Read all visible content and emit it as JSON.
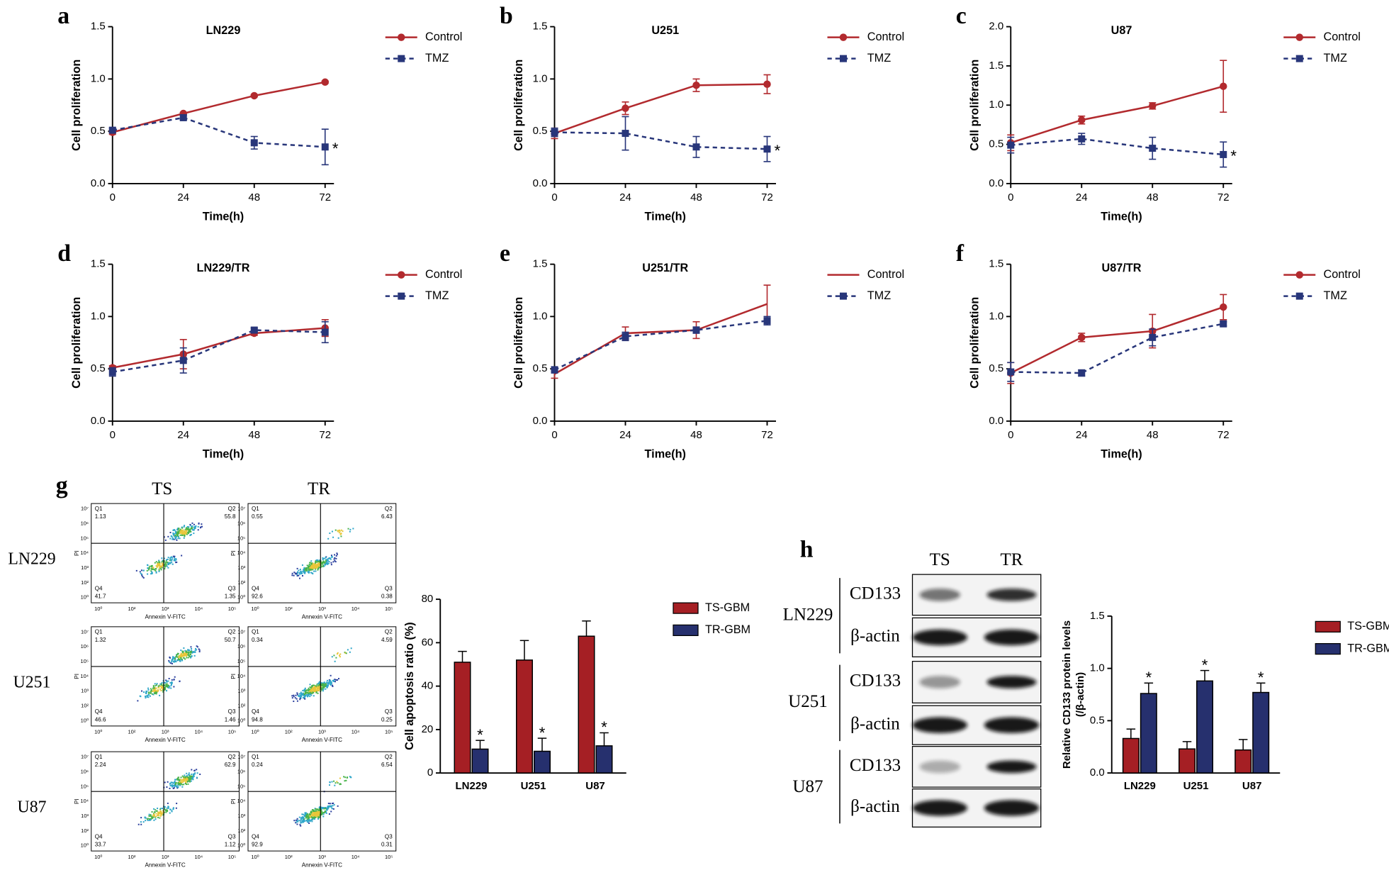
{
  "chart_data": [
    {
      "type": "line",
      "panel": "a",
      "title": "LN229",
      "xlabel": "Time(h)",
      "ylabel": "Cell proliferation",
      "x": [
        0,
        24,
        48,
        72
      ],
      "xlim": [
        0,
        75
      ],
      "xticks": [
        0,
        24,
        48,
        72
      ],
      "ylim": [
        0,
        1.5
      ],
      "yticks": [
        {
          "value": 0,
          "label": "0.0"
        },
        {
          "value": 0.5,
          "label": "0.5"
        },
        {
          "value": 1,
          "label": "1.0"
        },
        {
          "value": 1.5,
          "label": "1.5"
        }
      ],
      "series": [
        {
          "name": "Control",
          "color": "#b22a2e",
          "line_style": "solid",
          "marker": "circle",
          "values": [
            0.49,
            0.67,
            0.84,
            0.97
          ],
          "errors": [
            0.02,
            0.01,
            0.01,
            0.01
          ]
        },
        {
          "name": "TMZ",
          "color": "#28367a",
          "line_style": "dashed",
          "marker": "square",
          "values": [
            0.51,
            0.63,
            0.39,
            0.35
          ],
          "errors": [
            0.02,
            0.02,
            0.06,
            0.17
          ]
        }
      ],
      "significance": "*"
    },
    {
      "type": "line",
      "panel": "b",
      "title": "U251",
      "xlabel": "Time(h)",
      "ylabel": "Cell proliferation",
      "x": [
        0,
        24,
        48,
        72
      ],
      "xlim": [
        0,
        75
      ],
      "xticks": [
        0,
        24,
        48,
        72
      ],
      "ylim": [
        0,
        1.5
      ],
      "yticks": [
        {
          "value": 0,
          "label": "0.0"
        },
        {
          "value": 0.5,
          "label": "0.5"
        },
        {
          "value": 1,
          "label": "1.0"
        },
        {
          "value": 1.5,
          "label": "1.5"
        }
      ],
      "series": [
        {
          "name": "Control",
          "color": "#b22a2e",
          "line_style": "solid",
          "marker": "circle",
          "values": [
            0.48,
            0.72,
            0.94,
            0.95
          ],
          "errors": [
            0.05,
            0.06,
            0.06,
            0.09
          ]
        },
        {
          "name": "TMZ",
          "color": "#28367a",
          "line_style": "dashed",
          "marker": "square",
          "values": [
            0.49,
            0.48,
            0.35,
            0.33
          ],
          "errors": [
            0.04,
            0.16,
            0.1,
            0.12
          ]
        }
      ],
      "significance": "*"
    },
    {
      "type": "line",
      "panel": "c",
      "title": "U87",
      "xlabel": "Time(h)",
      "ylabel": "Cell proliferation",
      "x": [
        0,
        24,
        48,
        72
      ],
      "xlim": [
        0,
        75
      ],
      "xticks": [
        0,
        24,
        48,
        72
      ],
      "ylim": [
        0,
        2
      ],
      "yticks": [
        {
          "value": 0,
          "label": "0.0"
        },
        {
          "value": 0.5,
          "label": "0.5"
        },
        {
          "value": 1,
          "label": "1.0"
        },
        {
          "value": 1.5,
          "label": "1.5"
        },
        {
          "value": 2,
          "label": "2.0"
        }
      ],
      "series": [
        {
          "name": "Control",
          "color": "#b22a2e",
          "line_style": "solid",
          "marker": "circle",
          "values": [
            0.52,
            0.81,
            0.99,
            1.24
          ],
          "errors": [
            0.1,
            0.05,
            0.04,
            0.33
          ]
        },
        {
          "name": "TMZ",
          "color": "#28367a",
          "line_style": "dashed",
          "marker": "square",
          "values": [
            0.49,
            0.57,
            0.45,
            0.37
          ],
          "errors": [
            0.1,
            0.07,
            0.14,
            0.16
          ]
        }
      ],
      "significance": "*"
    },
    {
      "type": "line",
      "panel": "d",
      "title": "LN229/TR",
      "xlabel": "Time(h)",
      "ylabel": "Cell proliferation",
      "x": [
        0,
        24,
        48,
        72
      ],
      "xlim": [
        0,
        75
      ],
      "xticks": [
        0,
        24,
        48,
        72
      ],
      "ylim": [
        0,
        1.5
      ],
      "yticks": [
        {
          "value": 0,
          "label": "0.0"
        },
        {
          "value": 0.5,
          "label": "0.5"
        },
        {
          "value": 1,
          "label": "1.0"
        },
        {
          "value": 1.5,
          "label": "1.5"
        }
      ],
      "series": [
        {
          "name": "Control",
          "color": "#b22a2e",
          "line_style": "solid",
          "marker": "circle",
          "values": [
            0.51,
            0.64,
            0.84,
            0.89
          ],
          "errors": [
            0.02,
            0.14,
            0.02,
            0.08
          ]
        },
        {
          "name": "TMZ",
          "color": "#28367a",
          "line_style": "dashed",
          "marker": "square",
          "values": [
            0.47,
            0.58,
            0.87,
            0.85
          ],
          "errors": [
            0.04,
            0.12,
            0.02,
            0.1
          ]
        }
      ]
    },
    {
      "type": "line",
      "panel": "e",
      "title": "U251/TR",
      "xlabel": "Time(h)",
      "ylabel": "Cell proliferation",
      "x": [
        0,
        24,
        48,
        72
      ],
      "xlim": [
        0,
        75
      ],
      "xticks": [
        0,
        24,
        48,
        72
      ],
      "ylim": [
        0,
        1.5
      ],
      "yticks": [
        {
          "value": 0,
          "label": "0.0"
        },
        {
          "value": 0.5,
          "label": "0.5"
        },
        {
          "value": 1,
          "label": "1.0"
        },
        {
          "value": 1.5,
          "label": "1.5"
        }
      ],
      "series": [
        {
          "name": "Control",
          "color": "#b22a2e",
          "line_style": "solid",
          "marker": "none",
          "values": [
            0.45,
            0.84,
            0.87,
            1.12
          ],
          "errors": [
            0.04,
            0.06,
            0.08,
            0.18
          ]
        },
        {
          "name": "TMZ",
          "color": "#28367a",
          "line_style": "dashed",
          "marker": "square",
          "values": [
            0.49,
            0.81,
            0.87,
            0.96
          ],
          "errors": [
            0.03,
            0.04,
            0.03,
            0.04
          ]
        }
      ]
    },
    {
      "type": "line",
      "panel": "f",
      "title": "U87/TR",
      "xlabel": "Time(h)",
      "ylabel": "Cell proliferation",
      "x": [
        0,
        24,
        48,
        72
      ],
      "xlim": [
        0,
        75
      ],
      "xticks": [
        0,
        24,
        48,
        72
      ],
      "ylim": [
        0,
        1.5
      ],
      "yticks": [
        {
          "value": 0,
          "label": "0.0"
        },
        {
          "value": 0.5,
          "label": "0.5"
        },
        {
          "value": 1,
          "label": "1.0"
        },
        {
          "value": 1.5,
          "label": "1.5"
        }
      ],
      "series": [
        {
          "name": "Control",
          "color": "#b22a2e",
          "line_style": "solid",
          "marker": "circle",
          "values": [
            0.46,
            0.8,
            0.86,
            1.09
          ],
          "errors": [
            0.1,
            0.04,
            0.16,
            0.12
          ]
        },
        {
          "name": "TMZ",
          "color": "#28367a",
          "line_style": "dashed",
          "marker": "square",
          "values": [
            0.47,
            0.46,
            0.8,
            0.93
          ],
          "errors": [
            0.09,
            0.03,
            0.08,
            0.02
          ]
        }
      ]
    },
    {
      "type": "flow",
      "panel": "g",
      "columns": [
        "TS",
        "TR"
      ],
      "rows": [
        "LN229",
        "U251",
        "U87"
      ],
      "quadrant_names": [
        "Q1",
        "Q2",
        "Q3",
        "Q4"
      ],
      "xlabel": "Annexin V-FITC",
      "ylabel": "PI",
      "x_tick_labels": [
        "10⁰",
        "10²",
        "10³",
        "10⁴",
        "10⁵"
      ],
      "y_tick_labels": [
        "10⁰",
        "10²",
        "10³",
        "10⁴",
        "10⁵",
        "10⁶",
        "10⁷"
      ],
      "plots": [
        [
          [
            1.13,
            55.8,
            1.35,
            41.7
          ],
          [
            0.55,
            6.43,
            0.38,
            92.6
          ]
        ],
        [
          [
            1.32,
            50.7,
            1.46,
            46.6
          ],
          [
            0.34,
            4.59,
            0.25,
            94.8
          ]
        ],
        [
          [
            2.24,
            62.9,
            1.12,
            33.7
          ],
          [
            0.24,
            6.54,
            0.31,
            92.9
          ]
        ]
      ]
    },
    {
      "type": "bar",
      "ylabel": "Cell apoptosis ratio (%)",
      "categories": [
        "LN229",
        "U251",
        "U87"
      ],
      "ylim": [
        0,
        80
      ],
      "yticks": [
        0,
        20,
        40,
        60,
        80
      ],
      "series": [
        {
          "name": "TS-GBM",
          "color": "#a51f24",
          "values": [
            51,
            52,
            63
          ],
          "errors": [
            5,
            9,
            7
          ]
        },
        {
          "name": "TR-GBM",
          "color": "#26306e",
          "values": [
            11,
            10,
            12.5
          ],
          "errors": [
            4,
            6,
            6
          ],
          "significance": "*"
        }
      ]
    },
    {
      "type": "blot",
      "panel": "h",
      "columns": [
        "TS",
        "TR"
      ],
      "groups": [
        {
          "name": "LN229",
          "rows": [
            "CD133",
            "β-actin"
          ]
        },
        {
          "name": "U251",
          "rows": [
            "CD133",
            "β-actin"
          ]
        },
        {
          "name": "U87",
          "rows": [
            "CD133",
            "β-actin"
          ]
        }
      ]
    },
    {
      "type": "bar",
      "ylabel": [
        "Relative CD133 protein levels",
        "(/β-actin)"
      ],
      "categories": [
        "LN229",
        "U251",
        "U87"
      ],
      "ylim": [
        0,
        1.5
      ],
      "yticks": [
        {
          "value": 0,
          "label": "0.0"
        },
        {
          "value": 0.5,
          "label": "0.5"
        },
        {
          "value": 1,
          "label": "1.0"
        },
        {
          "value": 1.5,
          "label": "1.5"
        }
      ],
      "series": [
        {
          "name": "TS-GBM",
          "color": "#a51f24",
          "values": [
            0.33,
            0.23,
            0.22
          ],
          "errors": [
            0.09,
            0.07,
            0.1
          ]
        },
        {
          "name": "TR-GBM",
          "color": "#26306e",
          "values": [
            0.76,
            0.88,
            0.77
          ],
          "errors": [
            0.1,
            0.1,
            0.09
          ],
          "significance": "*"
        }
      ]
    }
  ]
}
